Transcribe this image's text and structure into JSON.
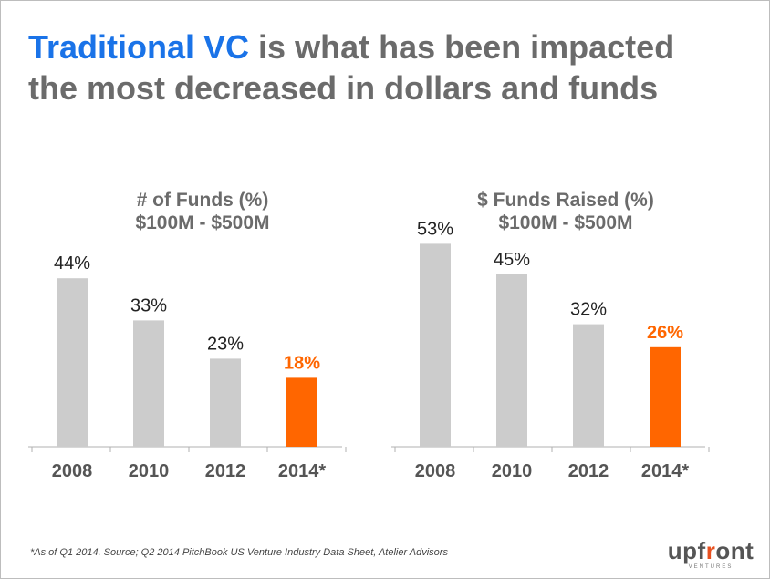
{
  "slide": {
    "title_highlight": "Traditional VC",
    "title_line1_rest": " is what has been impacted",
    "title_line2": "the most decreased in dollars and funds",
    "footnote": "*As of Q1 2014.  Source; Q2 2014 PitchBook US Venture Industry Data Sheet, Atelier Advisors",
    "logo": {
      "pre": "upf",
      "accent": "r",
      "post": "ont",
      "sub": "VENTURES"
    }
  },
  "colors": {
    "bar": "#cccccc",
    "highlight": "#ff6600",
    "title_accent": "#1a73e8",
    "text": "#6b6b6b"
  },
  "chart_data": [
    {
      "type": "bar",
      "title": [
        "# of Funds (%)",
        "$100M - $500M"
      ],
      "categories": [
        "2008",
        "2010",
        "2012",
        "2014*"
      ],
      "values": [
        44,
        33,
        23,
        18
      ],
      "labels": [
        "44%",
        "33%",
        "23%",
        "18%"
      ],
      "highlight_index": 3,
      "ylim": [
        0,
        50
      ],
      "grid": false
    },
    {
      "type": "bar",
      "title": [
        "$ Funds Raised (%)",
        "$100M - $500M"
      ],
      "categories": [
        "2008",
        "2010",
        "2012",
        "2014*"
      ],
      "values": [
        53,
        45,
        32,
        26
      ],
      "labels": [
        "53%",
        "45%",
        "32%",
        "26%"
      ],
      "highlight_index": 3,
      "ylim": [
        0,
        60
      ],
      "grid": false
    }
  ]
}
